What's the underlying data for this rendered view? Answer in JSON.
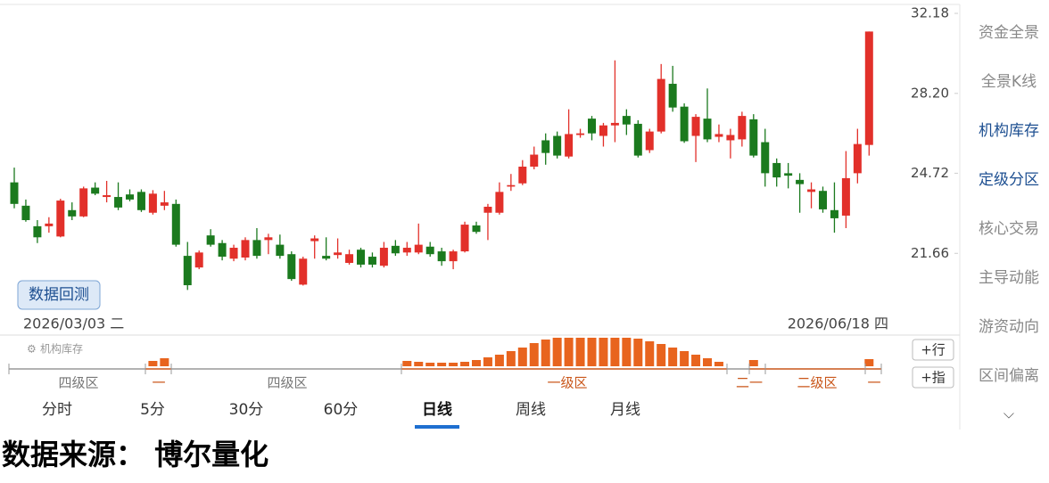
{
  "chart_data": {
    "type": "candlestick",
    "open": [
      24.35,
      23.43,
      22.65,
      22.65,
      22.27,
      23.26,
      23.02,
      24.14,
      23.77,
      23.77,
      23.87,
      23.97,
      23.16,
      23.43,
      23.5,
      21.57,
      21.16,
      22.31,
      22.03,
      21.47,
      21.51,
      22.14,
      22.14,
      21.97,
      21.63,
      20.57,
      22.1,
      21.57,
      21.6,
      21.32,
      21.79,
      21.54,
      21.22,
      21.93,
      21.69,
      21.69,
      21.9,
      21.73,
      21.38,
      21.73,
      22.68,
      23.16,
      23.16,
      24.18,
      24.31,
      24.99,
      26.1,
      26.29,
      25.41,
      26.33,
      27.05,
      26.29,
      26.75,
      27.17,
      26.82,
      25.68,
      26.48,
      28.65,
      27.59,
      26.29,
      27.05,
      26.25,
      26.1,
      26.14,
      27.02,
      26.02,
      25.14,
      24.72,
      24.45,
      23.97,
      24.01,
      23.26,
      23.05,
      24.72,
      25.9
    ],
    "high": [
      24.95,
      23.67,
      22.88,
      22.99,
      23.7,
      23.56,
      24.18,
      24.35,
      24.41,
      24.35,
      24.07,
      24.07,
      24.04,
      24.01,
      23.67,
      22.07,
      21.76,
      22.54,
      22.14,
      21.97,
      22.24,
      22.58,
      22.37,
      22.34,
      21.73,
      21.54,
      22.31,
      22.24,
      22.2,
      21.79,
      21.86,
      21.69,
      22.07,
      22.14,
      22.07,
      22.75,
      22.07,
      21.86,
      21.79,
      22.82,
      22.82,
      23.5,
      24.35,
      24.69,
      25.26,
      25.83,
      26.4,
      26.48,
      27.47,
      26.6,
      27.17,
      26.86,
      29.78,
      27.47,
      26.98,
      26.6,
      29.6,
      29.51,
      27.74,
      27.25,
      28.43,
      26.79,
      26.6,
      27.36,
      27.25,
      26.6,
      25.33,
      25.14,
      24.72,
      24.35,
      24.18,
      24.35,
      25.64,
      26.6,
      31.23
    ],
    "low": [
      23.33,
      22.82,
      22.03,
      22.41,
      22.24,
      22.88,
      22.99,
      23.84,
      23.56,
      23.26,
      23.6,
      23.19,
      23.09,
      23.26,
      21.9,
      20.39,
      21.1,
      21.9,
      21.41,
      21.38,
      21.41,
      21.47,
      21.63,
      21.47,
      20.7,
      20.54,
      21.47,
      21.41,
      21.47,
      21.26,
      21.16,
      21.16,
      21.16,
      21.57,
      21.57,
      21.63,
      21.54,
      21.22,
      21.1,
      21.69,
      22.37,
      22.14,
      23.09,
      24.01,
      24.24,
      24.88,
      25.07,
      25.33,
      25.33,
      26.21,
      26.1,
      25.83,
      26.02,
      26.33,
      25.37,
      25.56,
      26.4,
      27.36,
      25.99,
      25.18,
      26.02,
      26.02,
      25.33,
      25.83,
      25.37,
      24.18,
      24.18,
      24.11,
      23.16,
      23.33,
      23.16,
      22.41,
      22.58,
      24.31,
      25.45
    ],
    "close": [
      23.5,
      22.88,
      22.24,
      22.75,
      23.63,
      23.02,
      24.11,
      23.9,
      23.84,
      23.36,
      23.67,
      23.26,
      23.9,
      23.56,
      21.97,
      20.55,
      21.69,
      21.97,
      21.54,
      21.86,
      22.14,
      21.57,
      22.24,
      21.57,
      20.76,
      21.47,
      22.2,
      21.47,
      21.69,
      21.63,
      21.26,
      21.26,
      21.86,
      21.66,
      21.86,
      21.97,
      21.63,
      21.38,
      21.73,
      22.71,
      22.44,
      23.39,
      23.97,
      24.24,
      24.99,
      25.49,
      25.56,
      25.45,
      26.37,
      26.4,
      26.4,
      26.75,
      26.86,
      26.79,
      25.45,
      26.48,
      28.88,
      27.55,
      26.06,
      27.13,
      26.14,
      26.37,
      26.33,
      27.17,
      25.45,
      24.72,
      24.55,
      24.62,
      24.28,
      24.07,
      23.29,
      22.95,
      24.52,
      25.94,
      31.23
    ],
    "ylim": [
      19.81,
      32.18
    ],
    "log": true,
    "yticks": [
      32.18,
      {
        "value": 28.2,
        "label": "28.20"
      },
      24.72,
      21.66
    ],
    "up_color": "#e2302a",
    "down_color": "#1b7a1e"
  },
  "date_start": "2026/03/03 二",
  "date_end": "2026/06/18 四",
  "backtest_button": "数据回测",
  "indicator": {
    "title": "机构库存",
    "color": "#e8641e",
    "bars": [
      null,
      null,
      null,
      null,
      null,
      null,
      null,
      null,
      null,
      null,
      null,
      null,
      6,
      9,
      null,
      null,
      null,
      null,
      null,
      null,
      null,
      null,
      null,
      null,
      null,
      null,
      null,
      null,
      null,
      null,
      null,
      null,
      null,
      null,
      6,
      5,
      4,
      4,
      4,
      5,
      7,
      10,
      13,
      17,
      21,
      26,
      30,
      32,
      32,
      32,
      32,
      32,
      32,
      32,
      31,
      28,
      25,
      21,
      17,
      13,
      9,
      5,
      null,
      null,
      7,
      null,
      null,
      null,
      null,
      null,
      null,
      null,
      null,
      null,
      8
    ],
    "zones": [
      {
        "label": "四级区",
        "color": "#777777"
      },
      {
        "label": "一",
        "color": "#c9561a"
      },
      {
        "label": "四级区",
        "color": "#777777"
      },
      {
        "label": "一级区",
        "color": "#c9561a"
      },
      {
        "label": "二一",
        "color": "#c9561a"
      },
      {
        "label": "二级区",
        "color": "#c9561a"
      },
      {
        "label": "一",
        "color": "#c9561a"
      }
    ]
  },
  "side_buttons": [
    "+行",
    "+指"
  ],
  "tabs": [
    "分时",
    "5分",
    "30分",
    "60分",
    "日线",
    "周线",
    "月线"
  ],
  "selected_tab": 4,
  "sidebar": [
    "资金全景",
    "全景K线",
    "机构库存",
    "定级分区",
    "核心交易",
    "主导动能",
    "游资动向",
    "区间偏离"
  ],
  "sidebar_active": [
    2,
    3
  ],
  "footer": "数据来源： 博尔量化"
}
